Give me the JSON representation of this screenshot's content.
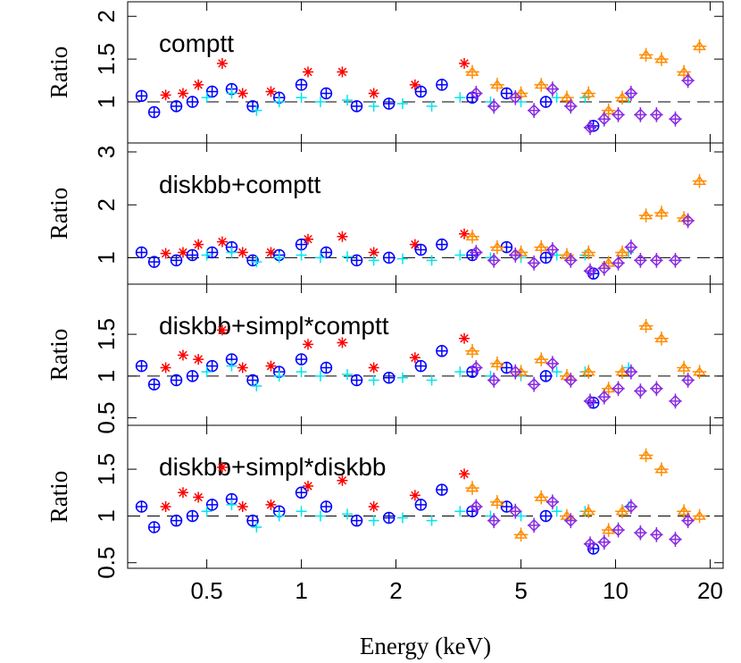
{
  "chart_data": [
    {
      "type": "scatter",
      "xlog": true,
      "annotation": "comptt",
      "ylabel": "Ratio",
      "xlim": [
        0.28,
        22
      ],
      "xticks": [
        0.5,
        1,
        2,
        5,
        10,
        20
      ],
      "ylim": [
        0.52,
        2.17
      ],
      "yticks": [
        1,
        1.5,
        2
      ],
      "reference_line": 1,
      "series": [
        {
          "color": "#ff0000",
          "marker": "star",
          "x": [
            0.37,
            0.42,
            0.47,
            0.56,
            0.65,
            0.8,
            1.05,
            1.35,
            1.7,
            2.3,
            3.3
          ],
          "values": [
            1.08,
            1.1,
            1.2,
            1.45,
            1.1,
            1.12,
            1.35,
            1.35,
            1.1,
            1.2,
            1.45
          ]
        },
        {
          "color": "#0000ff",
          "marker": "circle",
          "x": [
            0.31,
            0.34,
            0.4,
            0.45,
            0.52,
            0.6,
            0.7,
            0.85,
            1.0,
            1.2,
            1.5,
            1.9,
            2.4,
            2.8,
            3.5,
            4.5,
            6,
            8.5
          ],
          "values": [
            1.07,
            0.88,
            0.95,
            1.0,
            1.12,
            1.15,
            0.95,
            1.05,
            1.2,
            1.1,
            0.95,
            0.98,
            1.12,
            1.2,
            1.05,
            1.1,
            1.0,
            0.72
          ]
        },
        {
          "color": "#00e5ee",
          "marker": "plus",
          "x": [
            0.5,
            0.6,
            0.72,
            0.85,
            1.0,
            1.15,
            1.4,
            1.7,
            2.1,
            2.6,
            3.2,
            4,
            5,
            6.5,
            8,
            11
          ],
          "values": [
            1.05,
            1.1,
            0.9,
            1.0,
            1.05,
            1.0,
            1.02,
            0.95,
            0.98,
            0.95,
            1.05,
            1.0,
            1.0,
            1.05,
            1.05,
            1.05
          ]
        },
        {
          "color": "#ff8c00",
          "marker": "triangle",
          "x": [
            3.5,
            4.2,
            5,
            5.8,
            7,
            8.2,
            9.5,
            10.5,
            12.5,
            14,
            16.5,
            18.5
          ],
          "values": [
            1.35,
            1.2,
            1.1,
            1.2,
            1.05,
            1.1,
            0.9,
            1.05,
            1.55,
            1.5,
            1.35,
            1.65
          ]
        },
        {
          "color": "#8a2be2",
          "marker": "diamond",
          "x": [
            3.6,
            4.1,
            4.8,
            5.5,
            6.3,
            7.2,
            8.3,
            9.2,
            10.2,
            11.2,
            12,
            13.5,
            15.5,
            17
          ],
          "values": [
            1.1,
            0.95,
            1.05,
            0.9,
            1.15,
            0.95,
            0.7,
            0.8,
            0.85,
            1.1,
            0.85,
            0.85,
            0.8,
            1.25
          ]
        }
      ]
    },
    {
      "type": "scatter",
      "xlog": true,
      "annotation": "diskbb+comptt",
      "ylabel": "Ratio",
      "xlim": [
        0.28,
        22
      ],
      "xticks": [
        0.5,
        1,
        2,
        5,
        10,
        20
      ],
      "ylim": [
        0.5,
        3.17
      ],
      "yticks": [
        1,
        2,
        3
      ],
      "reference_line": 1,
      "series": [
        {
          "color": "#ff0000",
          "marker": "star",
          "x": [
            0.37,
            0.42,
            0.47,
            0.56,
            0.65,
            0.8,
            1.05,
            1.35,
            1.7,
            2.3,
            3.3
          ],
          "values": [
            1.08,
            1.1,
            1.25,
            1.3,
            1.1,
            1.1,
            1.35,
            1.4,
            1.1,
            1.25,
            1.45
          ]
        },
        {
          "color": "#0000ff",
          "marker": "circle",
          "x": [
            0.31,
            0.34,
            0.4,
            0.45,
            0.52,
            0.6,
            0.7,
            0.85,
            1.0,
            1.2,
            1.5,
            1.9,
            2.4,
            2.8,
            3.5,
            4.5,
            6,
            8.5
          ],
          "values": [
            1.1,
            0.92,
            0.95,
            1.05,
            1.1,
            1.2,
            0.95,
            1.05,
            1.25,
            1.1,
            0.95,
            1.0,
            1.15,
            1.25,
            1.05,
            1.2,
            1.0,
            0.7
          ]
        },
        {
          "color": "#00e5ee",
          "marker": "plus",
          "x": [
            0.5,
            0.6,
            0.72,
            0.85,
            1.0,
            1.15,
            1.4,
            1.7,
            2.1,
            2.6,
            3.2,
            4,
            5,
            6.5,
            8,
            11
          ],
          "values": [
            1.05,
            1.1,
            0.92,
            1.0,
            1.05,
            1.0,
            1.02,
            0.95,
            0.98,
            0.95,
            1.05,
            1.0,
            1.0,
            1.05,
            1.05,
            1.1
          ]
        },
        {
          "color": "#ff8c00",
          "marker": "triangle",
          "x": [
            3.5,
            4.2,
            5,
            5.8,
            7,
            8.2,
            9.5,
            10.5,
            12.5,
            14,
            16.5,
            18.5
          ],
          "values": [
            1.4,
            1.2,
            1.1,
            1.2,
            1.05,
            1.1,
            0.9,
            1.1,
            1.8,
            1.85,
            1.75,
            2.45
          ]
        },
        {
          "color": "#8a2be2",
          "marker": "diamond",
          "x": [
            3.6,
            4.1,
            4.8,
            5.5,
            6.3,
            7.2,
            8.3,
            9.2,
            10.2,
            11.2,
            12,
            13.5,
            15.5,
            17
          ],
          "values": [
            1.1,
            0.95,
            1.05,
            0.9,
            1.15,
            0.95,
            0.75,
            0.8,
            0.9,
            1.2,
            0.95,
            0.95,
            0.95,
            1.7
          ]
        }
      ]
    },
    {
      "type": "scatter",
      "xlog": true,
      "annotation": "diskbb+simpl*comptt",
      "ylabel": "Ratio",
      "xlim": [
        0.28,
        22
      ],
      "xticks": [
        0.5,
        1,
        2,
        5,
        10,
        20
      ],
      "ylim": [
        0.41,
        2.1
      ],
      "yticks": [
        0.5,
        1,
        1.5
      ],
      "reference_line": 1,
      "series": [
        {
          "color": "#ff0000",
          "marker": "star",
          "x": [
            0.37,
            0.42,
            0.47,
            0.56,
            0.65,
            0.8,
            1.05,
            1.35,
            1.7,
            2.3,
            3.3
          ],
          "values": [
            1.1,
            1.25,
            1.2,
            1.55,
            1.1,
            1.12,
            1.38,
            1.4,
            1.1,
            1.22,
            1.45
          ]
        },
        {
          "color": "#0000ff",
          "marker": "circle",
          "x": [
            0.31,
            0.34,
            0.4,
            0.45,
            0.52,
            0.6,
            0.7,
            0.85,
            1.0,
            1.2,
            1.5,
            1.9,
            2.4,
            2.8,
            3.5,
            4.5,
            6,
            8.5
          ],
          "values": [
            1.12,
            0.9,
            0.95,
            1.0,
            1.12,
            1.2,
            0.95,
            1.05,
            1.2,
            1.1,
            0.95,
            0.98,
            1.12,
            1.3,
            1.05,
            1.1,
            1.0,
            0.68
          ]
        },
        {
          "color": "#00e5ee",
          "marker": "plus",
          "x": [
            0.5,
            0.6,
            0.72,
            0.85,
            1.0,
            1.15,
            1.4,
            1.7,
            2.1,
            2.6,
            3.2,
            4,
            5,
            6.5,
            8,
            11
          ],
          "values": [
            1.05,
            1.12,
            0.88,
            1.0,
            1.05,
            1.0,
            1.02,
            0.95,
            0.98,
            0.95,
            1.05,
            1.0,
            1.0,
            1.05,
            1.05,
            1.1
          ]
        },
        {
          "color": "#ff8c00",
          "marker": "triangle",
          "x": [
            3.5,
            4.2,
            5,
            5.8,
            7,
            8.2,
            9.5,
            10.5,
            12.5,
            14,
            16.5,
            18.5
          ],
          "values": [
            1.3,
            1.15,
            1.05,
            1.2,
            1.0,
            1.05,
            0.85,
            1.05,
            1.6,
            1.45,
            1.1,
            1.05
          ]
        },
        {
          "color": "#8a2be2",
          "marker": "diamond",
          "x": [
            3.6,
            4.1,
            4.8,
            5.5,
            6.3,
            7.2,
            8.3,
            9.2,
            10.2,
            11.2,
            12,
            13.5,
            15.5,
            17
          ],
          "values": [
            1.1,
            0.95,
            1.05,
            0.9,
            1.15,
            0.95,
            0.7,
            0.75,
            0.85,
            1.05,
            0.82,
            0.85,
            0.7,
            0.95
          ]
        }
      ]
    },
    {
      "type": "scatter",
      "xlog": true,
      "annotation": "diskbb+simpl*diskbb",
      "ylabel": "Ratio",
      "xlabel": "Energy (keV)",
      "xlim": [
        0.28,
        22
      ],
      "xticks": [
        0.5,
        1,
        2,
        5,
        10,
        20
      ],
      "ylim": [
        0.44,
        1.97
      ],
      "yticks": [
        0.5,
        1,
        1.5
      ],
      "reference_line": 1,
      "series": [
        {
          "color": "#ff0000",
          "marker": "star",
          "x": [
            0.37,
            0.42,
            0.47,
            0.56,
            0.65,
            0.8,
            1.05,
            1.35,
            1.7,
            2.3,
            3.3
          ],
          "values": [
            1.1,
            1.25,
            1.2,
            1.52,
            1.1,
            1.12,
            1.32,
            1.38,
            1.1,
            1.22,
            1.45
          ]
        },
        {
          "color": "#0000ff",
          "marker": "circle",
          "x": [
            0.31,
            0.34,
            0.4,
            0.45,
            0.52,
            0.6,
            0.7,
            0.85,
            1.0,
            1.2,
            1.5,
            1.9,
            2.4,
            2.8,
            3.5,
            4.5,
            6,
            8.5
          ],
          "values": [
            1.1,
            0.88,
            0.95,
            1.0,
            1.12,
            1.18,
            0.95,
            1.05,
            1.25,
            1.1,
            0.95,
            0.98,
            1.12,
            1.28,
            1.05,
            1.1,
            1.0,
            0.65
          ]
        },
        {
          "color": "#00e5ee",
          "marker": "plus",
          "x": [
            0.5,
            0.6,
            0.72,
            0.85,
            1.0,
            1.15,
            1.4,
            1.7,
            2.1,
            2.6,
            3.2,
            4,
            5,
            6.5,
            8,
            11
          ],
          "values": [
            1.05,
            1.12,
            0.88,
            1.0,
            1.05,
            1.0,
            1.02,
            0.95,
            0.98,
            0.95,
            1.05,
            1.0,
            1.0,
            1.05,
            1.05,
            1.1
          ]
        },
        {
          "color": "#ff8c00",
          "marker": "triangle",
          "x": [
            3.5,
            4.2,
            5,
            5.8,
            7,
            8.2,
            9.5,
            10.5,
            12.5,
            14,
            16.5,
            18.5
          ],
          "values": [
            1.3,
            1.15,
            0.8,
            1.2,
            1.0,
            1.05,
            0.85,
            1.05,
            1.65,
            1.5,
            1.05,
            1.0
          ]
        },
        {
          "color": "#8a2be2",
          "marker": "diamond",
          "x": [
            3.6,
            4.1,
            4.8,
            5.5,
            6.3,
            7.2,
            8.3,
            9.2,
            10.2,
            11.2,
            12,
            13.5,
            15.5,
            17
          ],
          "values": [
            1.1,
            0.95,
            1.05,
            0.9,
            1.15,
            0.95,
            0.7,
            0.72,
            0.85,
            1.1,
            0.82,
            0.8,
            0.75,
            0.95
          ]
        }
      ]
    }
  ]
}
